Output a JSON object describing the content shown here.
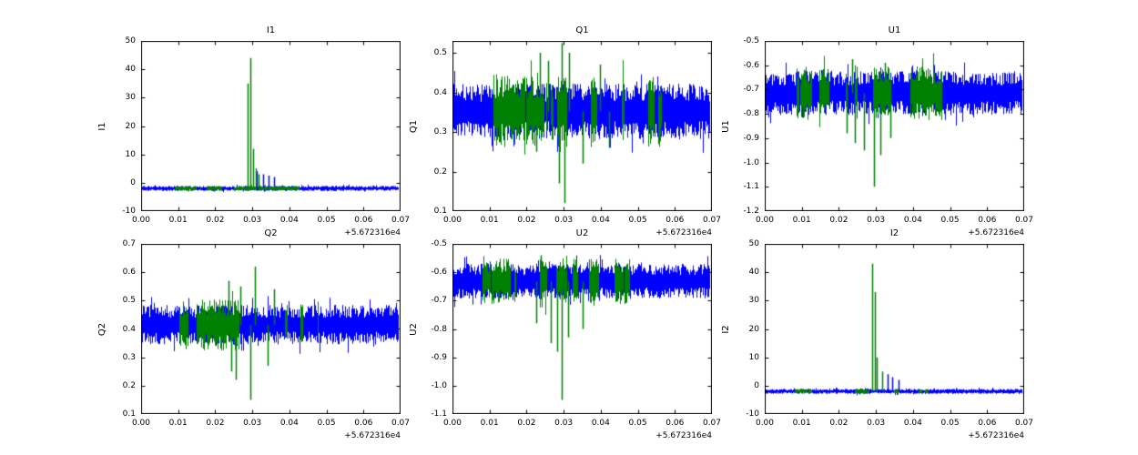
{
  "figure": {
    "colors": {
      "axes": "#000000",
      "series1": "#0000ff",
      "series2": "#008000",
      "background": "#ffffff"
    },
    "x_offset_label": "+5.672316e4"
  },
  "chart_data": [
    {
      "type": "line",
      "title": "I1",
      "ylabel": "I1",
      "xlim": [
        0,
        0.07
      ],
      "ylim": [
        -10,
        50
      ],
      "xticks": [
        0,
        0.01,
        0.02,
        0.03,
        0.04,
        0.05,
        0.06,
        0.07
      ],
      "xtick_labels": [
        "0.00",
        "0.01",
        "0.02",
        "0.03",
        "0.04",
        "0.05",
        "0.06",
        "0.07"
      ],
      "yticks": [
        -10,
        0,
        10,
        20,
        30,
        40,
        50
      ],
      "ytick_labels": [
        "-10",
        "0",
        "10",
        "20",
        "30",
        "40",
        "50"
      ],
      "x_offset": "+5.672316e4",
      "grid": false,
      "legend": "none",
      "series": [
        {
          "color": "#0000ff",
          "center": -2,
          "amp": 0.9,
          "density": 1,
          "coverage": [
            [
              0,
              0.0695
            ]
          ],
          "spikes": [
            {
              "x": 0.0312,
              "y": 4
            },
            {
              "x": 0.0328,
              "y": 3
            },
            {
              "x": 0.0345,
              "y": 2.5
            },
            {
              "x": 0.0358,
              "y": 2
            }
          ]
        },
        {
          "color": "#008000",
          "center": -2,
          "amp": 0.9,
          "density": 0.45,
          "coverage": [
            [
              0.008,
              0.048
            ]
          ],
          "spikes": [
            {
              "x": 0.0288,
              "y": 35
            },
            {
              "x": 0.0294,
              "y": 44
            },
            {
              "x": 0.0302,
              "y": 12
            },
            {
              "x": 0.0309,
              "y": 5
            },
            {
              "x": 0.0318,
              "y": 3
            }
          ]
        }
      ]
    },
    {
      "type": "line",
      "title": "Q1",
      "ylabel": "Q1",
      "xlim": [
        0,
        0.07
      ],
      "ylim": [
        0.1,
        0.53
      ],
      "xticks": [
        0,
        0.01,
        0.02,
        0.03,
        0.04,
        0.05,
        0.06,
        0.07
      ],
      "xtick_labels": [
        "0.00",
        "0.01",
        "0.02",
        "0.03",
        "0.04",
        "0.05",
        "0.06",
        "0.07"
      ],
      "yticks": [
        0.1,
        0.2,
        0.3,
        0.4,
        0.5
      ],
      "ytick_labels": [
        "0.1",
        "0.2",
        "0.3",
        "0.4",
        "0.5"
      ],
      "x_offset": "+5.672316e4",
      "grid": false,
      "legend": "none",
      "series": [
        {
          "color": "#0000ff",
          "center": 0.352,
          "amp": 0.07,
          "density": 1,
          "coverage": [
            [
              0,
              0.0695
            ]
          ],
          "spikes": []
        },
        {
          "color": "#008000",
          "center": 0.352,
          "amp": 0.09,
          "density": 0.5,
          "coverage": [
            [
              0.008,
              0.048
            ],
            [
              0.0525,
              0.0565
            ]
          ],
          "spikes": [
            {
              "x": 0.0235,
              "y": 0.5
            },
            {
              "x": 0.0258,
              "y": 0.48
            },
            {
              "x": 0.0295,
              "y": 0.525
            },
            {
              "x": 0.0302,
              "y": 0.12
            },
            {
              "x": 0.0288,
              "y": 0.17
            },
            {
              "x": 0.0315,
              "y": 0.5
            },
            {
              "x": 0.0398,
              "y": 0.47
            },
            {
              "x": 0.0225,
              "y": 0.25
            },
            {
              "x": 0.0352,
              "y": 0.22
            },
            {
              "x": 0.0422,
              "y": 0.26
            }
          ]
        }
      ]
    },
    {
      "type": "line",
      "title": "U1",
      "ylabel": "U1",
      "xlim": [
        0,
        0.07
      ],
      "ylim": [
        -1.2,
        -0.5
      ],
      "xticks": [
        0,
        0.01,
        0.02,
        0.03,
        0.04,
        0.05,
        0.06,
        0.07
      ],
      "xtick_labels": [
        "0.00",
        "0.01",
        "0.02",
        "0.03",
        "0.04",
        "0.05",
        "0.06",
        "0.07"
      ],
      "yticks": [
        -1.2,
        -1.1,
        -1.0,
        -0.9,
        -0.8,
        -0.7,
        -0.6,
        -0.5
      ],
      "ytick_labels": [
        "-1.2",
        "-1.1",
        "-1.0",
        "-0.9",
        "-0.8",
        "-0.7",
        "-0.6",
        "-0.5"
      ],
      "x_offset": "+5.672316e4",
      "grid": false,
      "legend": "none",
      "series": [
        {
          "color": "#0000ff",
          "center": -0.715,
          "amp": 0.09,
          "density": 1,
          "coverage": [
            [
              0,
              0.0695
            ]
          ],
          "spikes": []
        },
        {
          "color": "#008000",
          "center": -0.715,
          "amp": 0.11,
          "density": 0.5,
          "coverage": [
            [
              0.008,
              0.048
            ]
          ],
          "spikes": [
            {
              "x": 0.0295,
              "y": -1.1
            },
            {
              "x": 0.0268,
              "y": -0.95
            },
            {
              "x": 0.0242,
              "y": -0.92
            },
            {
              "x": 0.0312,
              "y": -0.97
            },
            {
              "x": 0.0222,
              "y": -0.88
            },
            {
              "x": 0.0338,
              "y": -0.9
            },
            {
              "x": 0.0235,
              "y": -0.575
            },
            {
              "x": 0.0325,
              "y": -0.59
            }
          ]
        }
      ]
    },
    {
      "type": "line",
      "title": "Q2",
      "ylabel": "Q2",
      "xlim": [
        0,
        0.07
      ],
      "ylim": [
        0.1,
        0.7
      ],
      "xticks": [
        0,
        0.01,
        0.02,
        0.03,
        0.04,
        0.05,
        0.06,
        0.07
      ],
      "xtick_labels": [
        "0.00",
        "0.01",
        "0.02",
        "0.03",
        "0.04",
        "0.05",
        "0.06",
        "0.07"
      ],
      "yticks": [
        0.1,
        0.2,
        0.3,
        0.4,
        0.5,
        0.6,
        0.7
      ],
      "ytick_labels": [
        "0.1",
        "0.2",
        "0.3",
        "0.4",
        "0.5",
        "0.6",
        "0.7"
      ],
      "x_offset": "+5.672316e4",
      "grid": false,
      "legend": "none",
      "series": [
        {
          "color": "#0000ff",
          "center": 0.415,
          "amp": 0.07,
          "density": 1,
          "coverage": [
            [
              0,
              0.0695
            ]
          ],
          "spikes": []
        },
        {
          "color": "#008000",
          "center": 0.415,
          "amp": 0.09,
          "density": 0.5,
          "coverage": [
            [
              0.008,
              0.048
            ]
          ],
          "spikes": [
            {
              "x": 0.0308,
              "y": 0.62
            },
            {
              "x": 0.0295,
              "y": 0.15
            },
            {
              "x": 0.0235,
              "y": 0.57
            },
            {
              "x": 0.0268,
              "y": 0.55
            },
            {
              "x": 0.0358,
              "y": 0.54
            },
            {
              "x": 0.0255,
              "y": 0.22
            },
            {
              "x": 0.0242,
              "y": 0.25
            },
            {
              "x": 0.0342,
              "y": 0.27
            }
          ]
        }
      ]
    },
    {
      "type": "line",
      "title": "U2",
      "ylabel": "U2",
      "xlim": [
        0,
        0.07
      ],
      "ylim": [
        -1.1,
        -0.5
      ],
      "xticks": [
        0,
        0.01,
        0.02,
        0.03,
        0.04,
        0.05,
        0.06,
        0.07
      ],
      "xtick_labels": [
        "0.00",
        "0.01",
        "0.02",
        "0.03",
        "0.04",
        "0.05",
        "0.06",
        "0.07"
      ],
      "yticks": [
        -1.1,
        -1.0,
        -0.9,
        -0.8,
        -0.7,
        -0.6,
        -0.5
      ],
      "ytick_labels": [
        "-1.1",
        "-1.0",
        "-0.9",
        "-0.8",
        "-0.7",
        "-0.6",
        "-0.5"
      ],
      "x_offset": "+5.672316e4",
      "grid": false,
      "legend": "none",
      "series": [
        {
          "color": "#0000ff",
          "center": -0.632,
          "amp": 0.062,
          "density": 1,
          "coverage": [
            [
              0,
              0.0695
            ]
          ],
          "spikes": []
        },
        {
          "color": "#008000",
          "center": -0.632,
          "amp": 0.08,
          "density": 0.5,
          "coverage": [
            [
              0.008,
              0.048
            ]
          ],
          "spikes": [
            {
              "x": 0.0295,
              "y": -1.05
            },
            {
              "x": 0.0282,
              "y": -0.88
            },
            {
              "x": 0.0265,
              "y": -0.85
            },
            {
              "x": 0.0312,
              "y": -0.83
            },
            {
              "x": 0.0352,
              "y": -0.8
            },
            {
              "x": 0.0225,
              "y": -0.78
            },
            {
              "x": 0.0238,
              "y": -0.54
            }
          ]
        }
      ]
    },
    {
      "type": "line",
      "title": "I2",
      "ylabel": "I2",
      "xlim": [
        0,
        0.07
      ],
      "ylim": [
        -10,
        50
      ],
      "xticks": [
        0,
        0.01,
        0.02,
        0.03,
        0.04,
        0.05,
        0.06,
        0.07
      ],
      "xtick_labels": [
        "0.00",
        "0.01",
        "0.02",
        "0.03",
        "0.04",
        "0.05",
        "0.06",
        "0.07"
      ],
      "yticks": [
        -10,
        0,
        10,
        20,
        30,
        40,
        50
      ],
      "ytick_labels": [
        "-10",
        "0",
        "10",
        "20",
        "30",
        "40",
        "50"
      ],
      "x_offset": "+5.672316e4",
      "grid": false,
      "legend": "none",
      "series": [
        {
          "color": "#0000ff",
          "center": -2,
          "amp": 0.9,
          "density": 1,
          "coverage": [
            [
              0,
              0.0695
            ]
          ],
          "spikes": [
            {
              "x": 0.0332,
              "y": 4
            },
            {
              "x": 0.0345,
              "y": 3
            },
            {
              "x": 0.0362,
              "y": 2
            }
          ]
        },
        {
          "color": "#008000",
          "center": -2,
          "amp": 0.9,
          "density": 0.45,
          "coverage": [
            [
              0.008,
              0.048
            ]
          ],
          "spikes": [
            {
              "x": 0.0289,
              "y": 43
            },
            {
              "x": 0.0296,
              "y": 33
            },
            {
              "x": 0.0303,
              "y": 10
            },
            {
              "x": 0.0316,
              "y": 5
            }
          ]
        }
      ]
    }
  ]
}
